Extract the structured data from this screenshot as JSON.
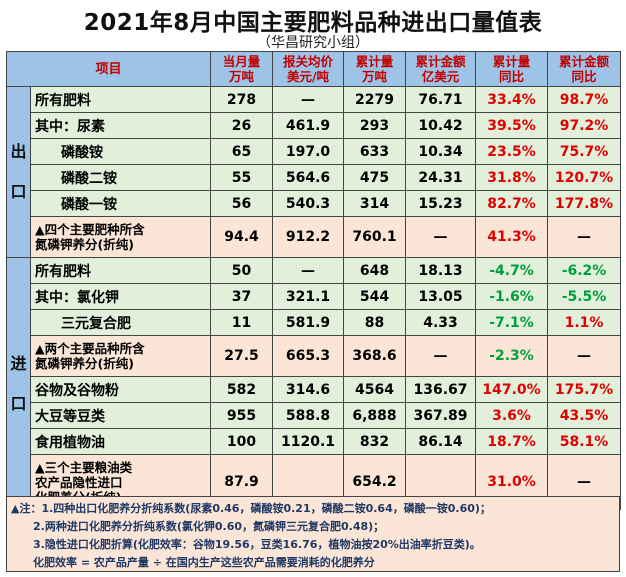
{
  "title": "2021年8月中国主要肥料品种进出口量值表",
  "subtitle": "（华昌研究小组）",
  "headers": {
    "item": "项目",
    "month_vol": "当月量\n万吨",
    "price": "报关均价\n美元/吨",
    "cum_vol": "累计量\n万吨",
    "cum_amt": "累计金额\n亿美元",
    "cum_yoy": "累计量\n同比",
    "amt_yoy": "累计金额\n同比"
  },
  "side": {
    "export": "出口",
    "import": "进口"
  },
  "export_rows": [
    {
      "item": "所有肥料",
      "month": "278",
      "price": "—",
      "cum": "2279",
      "amt": "76.71",
      "yoy": "33.4%",
      "amt_yoy": "98.7%"
    },
    {
      "item": "其中：尿素",
      "month": "26",
      "price": "461.9",
      "cum": "293",
      "amt": "10.42",
      "yoy": "39.5%",
      "amt_yoy": "97.2%"
    },
    {
      "item": "磷酸铵",
      "month": "65",
      "price": "197.0",
      "cum": "633",
      "amt": "10.34",
      "yoy": "23.5%",
      "amt_yoy": "75.7%"
    },
    {
      "item": "磷酸二铵",
      "month": "55",
      "price": "564.6",
      "cum": "475",
      "amt": "24.31",
      "yoy": "31.8%",
      "amt_yoy": "120.7%"
    },
    {
      "item": "磷酸一铵",
      "month": "56",
      "price": "540.3",
      "cum": "314",
      "amt": "15.23",
      "yoy": "82.7%",
      "amt_yoy": "177.8%"
    },
    {
      "item": "▲四个主要肥种所含\n氮磷钾养分(折纯)",
      "month": "94.4",
      "price": "912.2",
      "cum": "760.1",
      "amt": "—",
      "yoy": "41.3%",
      "amt_yoy": "—"
    }
  ],
  "import_rows": [
    {
      "item": "所有肥料",
      "month": "50",
      "price": "—",
      "cum": "648",
      "amt": "18.13",
      "yoy": "-4.7%",
      "amt_yoy": "-6.2%"
    },
    {
      "item": "其中：氯化钾",
      "month": "37",
      "price": "321.1",
      "cum": "544",
      "amt": "13.05",
      "yoy": "-1.6%",
      "amt_yoy": "-5.5%"
    },
    {
      "item": "三元复合肥",
      "month": "11",
      "price": "581.9",
      "cum": "88",
      "amt": "4.33",
      "yoy": "-7.1%",
      "amt_yoy": "1.1%"
    },
    {
      "item": "▲两个主要品种所含\n氮磷钾养分(折纯)",
      "month": "27.5",
      "price": "665.3",
      "cum": "368.6",
      "amt": "—",
      "yoy": "-2.3%",
      "amt_yoy": "—"
    },
    {
      "item": "谷物及谷物粉",
      "month": "582",
      "price": "314.6",
      "cum": "4564",
      "amt": "136.67",
      "yoy": "147.0%",
      "amt_yoy": "175.7%"
    },
    {
      "item": "大豆等豆类",
      "month": "955",
      "price": "588.8",
      "cum": "6,888",
      "amt": "367.89",
      "yoy": "3.6%",
      "amt_yoy": "43.5%"
    },
    {
      "item": "食用植物油",
      "month": "100",
      "price": "1120.1",
      "cum": "832",
      "amt": "86.14",
      "yoy": "18.7%",
      "amt_yoy": "58.1%"
    },
    {
      "item": "▲三个主要粮油类\n农产品隐性进口\n化肥养分(折纯)",
      "month": "87.9",
      "price": "",
      "cum": "654.2",
      "amt": "",
      "yoy": "31.0%",
      "amt_yoy": "—"
    }
  ],
  "notes": [
    "▲注：1.四种出口化肥养分折纯系数(尿素0.46，磷酸铵0.21，磷酸二铵0.64，磷酸一铵0.60)；",
    "2.两种进口化肥养分折纯系数(氯化钾0.60，氮磷钾三元复合肥0.48)；",
    "3.隐性进口化肥折算(化肥效率：谷物19.56，豆类16.76，植物油按20%出油率折豆类)。",
    "化肥效率 = 农产品产量 ÷ 在国内生产这些农产品需要消耗的化肥养分"
  ],
  "colors": {
    "header": "#9dc3e6",
    "row_green": "#e2efda",
    "row_orange": "#fbe5d6",
    "negative": "#00a03c",
    "positive": "#e00000"
  }
}
